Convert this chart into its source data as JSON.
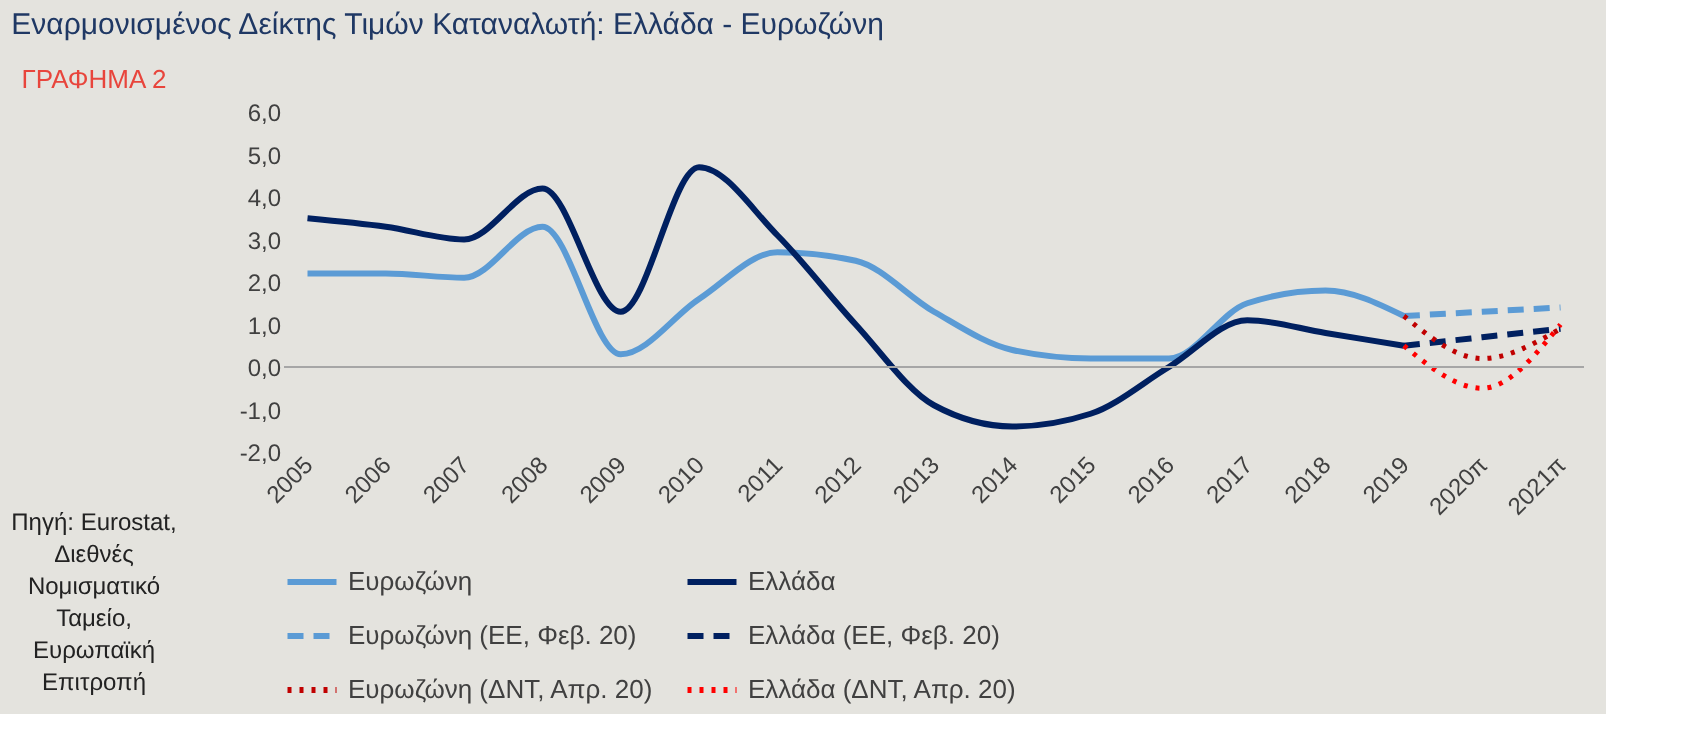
{
  "chart_data": {
    "type": "line",
    "title": "Εναρμονισμένος Δείκτης Τιμών Καταναλωτή: Ελλάδα - Ευρωζώνη",
    "annotations": [
      "ΓΡΑΦΗΜΑ 2",
      "Πηγή: Eurostat, Διεθνές Νομισματικό Ταμείο, Ευρωπαϊκή Επιτροπή"
    ],
    "categories": [
      "2005",
      "2006",
      "2007",
      "2008",
      "2009",
      "2010",
      "2011",
      "2012",
      "2013",
      "2014",
      "2015",
      "2016",
      "2017",
      "2018",
      "2019",
      "2020π",
      "2021π"
    ],
    "series": [
      {
        "name": "Ευρωζώνη",
        "color": "#5b9bd5",
        "line_style": "solid",
        "values": [
          2.2,
          2.2,
          2.1,
          3.3,
          0.3,
          1.6,
          2.7,
          2.5,
          1.3,
          0.4,
          0.2,
          0.2,
          1.5,
          1.8,
          1.2,
          null,
          null
        ]
      },
      {
        "name": "Ελλάδα",
        "color": "#002060",
        "line_style": "solid",
        "values": [
          3.5,
          3.3,
          3.0,
          4.2,
          1.3,
          4.7,
          3.1,
          1.0,
          -0.9,
          -1.4,
          -1.1,
          0.0,
          1.1,
          0.8,
          0.5,
          null,
          null
        ]
      },
      {
        "name": "Ευρωζώνη (ΕΕ, Φεβ. 20)",
        "color": "#5b9bd5",
        "line_style": "dashed",
        "values": [
          null,
          null,
          null,
          null,
          null,
          null,
          null,
          null,
          null,
          null,
          null,
          null,
          null,
          null,
          1.2,
          1.3,
          1.4
        ]
      },
      {
        "name": "Ελλάδα (ΕΕ, Φεβ. 20)",
        "color": "#002060",
        "line_style": "dashed",
        "values": [
          null,
          null,
          null,
          null,
          null,
          null,
          null,
          null,
          null,
          null,
          null,
          null,
          null,
          null,
          0.5,
          0.7,
          0.9
        ]
      },
      {
        "name": "Ευρωζώνη (ΔΝΤ, Απρ. 20)",
        "color": "#c00000",
        "line_style": "dotted",
        "values": [
          null,
          null,
          null,
          null,
          null,
          null,
          null,
          null,
          null,
          null,
          null,
          null,
          null,
          null,
          1.2,
          0.2,
          0.9
        ]
      },
      {
        "name": "Ελλάδα (ΔΝΤ, Απρ. 20)",
        "color": "#ff0000",
        "line_style": "dotted",
        "values": [
          null,
          null,
          null,
          null,
          null,
          null,
          null,
          null,
          null,
          null,
          null,
          null,
          null,
          null,
          0.5,
          -0.5,
          1.0
        ]
      }
    ],
    "ylim": [
      -2.0,
      6.0
    ],
    "yticks": [
      {
        "value": -2,
        "label": "-2,0"
      },
      {
        "value": -1,
        "label": "-1,0"
      },
      {
        "value": 0,
        "label": "0,0"
      },
      {
        "value": 1,
        "label": "1,0"
      },
      {
        "value": 2,
        "label": "2,0"
      },
      {
        "value": 3,
        "label": "3,0"
      },
      {
        "value": 4,
        "label": "4,0"
      },
      {
        "value": 5,
        "label": "5,0"
      },
      {
        "value": 6,
        "label": "6,0"
      }
    ],
    "ref_lines": [
      {
        "axis": "y",
        "value": 0,
        "color": "#a6a6a6"
      }
    ],
    "grid": false,
    "legend": "bottom",
    "marker": "none"
  }
}
